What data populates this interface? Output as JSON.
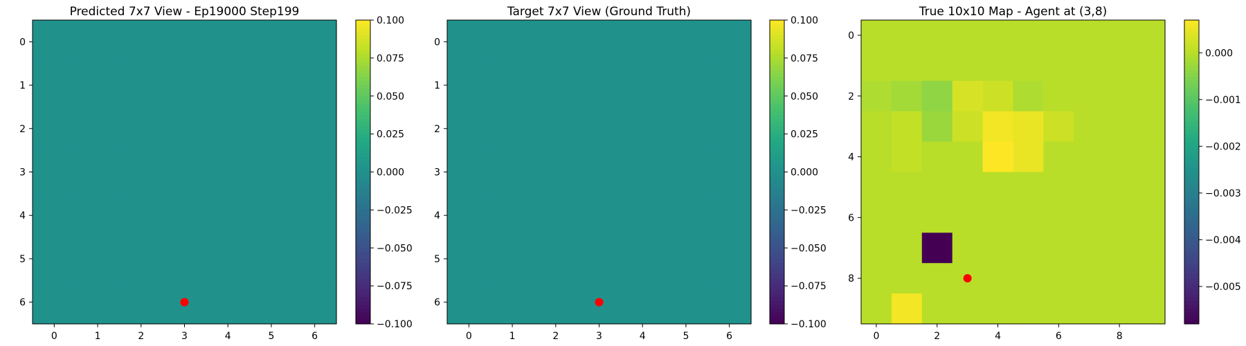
{
  "figure": {
    "panels": [
      {
        "title": "Predicted 7x7 View - Ep19000 Step199",
        "colorbar_ticks": [
          "0.100",
          "0.075",
          "0.050",
          "0.025",
          "0.000",
          "−0.025",
          "−0.050",
          "−0.075",
          "−0.100"
        ],
        "x_ticks": [
          "0",
          "1",
          "2",
          "3",
          "4",
          "5",
          "6"
        ],
        "y_ticks": [
          "0",
          "1",
          "2",
          "3",
          "4",
          "5",
          "6"
        ]
      },
      {
        "title": "Target 7x7 View (Ground Truth)",
        "colorbar_ticks": [
          "0.100",
          "0.075",
          "0.050",
          "0.025",
          "0.000",
          "−0.025",
          "−0.050",
          "−0.075",
          "−0.100"
        ],
        "x_ticks": [
          "0",
          "1",
          "2",
          "3",
          "4",
          "5",
          "6"
        ],
        "y_ticks": [
          "0",
          "1",
          "2",
          "3",
          "4",
          "5",
          "6"
        ]
      },
      {
        "title": "True 10x10 Map - Agent at (3,8)",
        "colorbar_ticks": [
          "0.000",
          "−0.001",
          "−0.002",
          "−0.003",
          "−0.004",
          "−0.005"
        ],
        "x_ticks": [
          "0",
          "2",
          "4",
          "6",
          "8"
        ],
        "y_ticks": [
          "0",
          "2",
          "4",
          "6",
          "8"
        ]
      }
    ]
  },
  "chart_data": [
    {
      "type": "heatmap",
      "title": "Predicted 7x7 View - Ep19000 Step199",
      "colormap": "viridis",
      "vmin": -0.1,
      "vmax": 0.1,
      "grid": [
        [
          0,
          0,
          0,
          0,
          0,
          0,
          0
        ],
        [
          0,
          0,
          0,
          0,
          0,
          0,
          0
        ],
        [
          0,
          0,
          0,
          0,
          0,
          0,
          0
        ],
        [
          0,
          0,
          0,
          0,
          0,
          0,
          0
        ],
        [
          0,
          0,
          0,
          0,
          0,
          0,
          0
        ],
        [
          0,
          0,
          0,
          0,
          0,
          0,
          0
        ],
        [
          0,
          0,
          0,
          0,
          0,
          0,
          0
        ]
      ],
      "marker": {
        "x": 3,
        "y": 6,
        "color": "#ff0000"
      },
      "colorbar_ticks": [
        0.1,
        0.075,
        0.05,
        0.025,
        0,
        -0.025,
        -0.05,
        -0.075,
        -0.1
      ],
      "x_ticks": [
        0,
        1,
        2,
        3,
        4,
        5,
        6
      ],
      "y_ticks": [
        0,
        1,
        2,
        3,
        4,
        5,
        6
      ],
      "grid_lines": false
    },
    {
      "type": "heatmap",
      "title": "Target 7x7 View (Ground Truth)",
      "colormap": "viridis",
      "vmin": -0.1,
      "vmax": 0.1,
      "grid": [
        [
          0,
          0,
          0,
          0,
          0,
          0,
          0
        ],
        [
          0,
          0,
          0,
          0,
          0,
          0,
          0
        ],
        [
          0,
          0,
          0,
          0,
          0,
          0,
          0
        ],
        [
          0,
          0,
          0,
          0,
          0,
          0,
          0
        ],
        [
          0,
          0,
          0,
          0,
          0,
          0,
          0
        ],
        [
          0,
          0,
          0,
          0,
          0,
          0,
          0
        ],
        [
          0,
          0,
          0,
          0,
          0,
          0,
          0
        ]
      ],
      "marker": {
        "x": 3,
        "y": 6,
        "color": "#ff0000"
      },
      "colorbar_ticks": [
        0.1,
        0.075,
        0.05,
        0.025,
        0,
        -0.025,
        -0.05,
        -0.075,
        -0.1
      ],
      "x_ticks": [
        0,
        1,
        2,
        3,
        4,
        5,
        6
      ],
      "y_ticks": [
        0,
        1,
        2,
        3,
        4,
        5,
        6
      ],
      "grid_lines": false
    },
    {
      "type": "heatmap",
      "title": "True 10x10 Map - Agent at (3,8)",
      "colormap": "viridis",
      "vmin": -0.0058,
      "vmax": 0.0007,
      "grid": [
        [
          0,
          0,
          0,
          0,
          0,
          0,
          0,
          0,
          0,
          0
        ],
        [
          0,
          0,
          0,
          0,
          0,
          0,
          0,
          0,
          0,
          0
        ],
        [
          -0.0001,
          -0.0002,
          -0.0004,
          0.0003,
          0.0002,
          -0.0001,
          0,
          0,
          0,
          0
        ],
        [
          0,
          0.0001,
          -0.0003,
          0.0002,
          0.0006,
          0.0005,
          0.0002,
          0,
          0,
          0
        ],
        [
          0,
          0.0001,
          0,
          0,
          0.0007,
          0.0005,
          0,
          0,
          0,
          0
        ],
        [
          0,
          0,
          0,
          0,
          0,
          0,
          0,
          0,
          0,
          0
        ],
        [
          0,
          0,
          0,
          0,
          0,
          0,
          0,
          0,
          0,
          0
        ],
        [
          0,
          0,
          -0.0058,
          0,
          0,
          0,
          0,
          0,
          0,
          0
        ],
        [
          0,
          0,
          0,
          0,
          0,
          0,
          0,
          0,
          0,
          0
        ],
        [
          0,
          0.0006,
          0,
          0,
          0,
          0,
          0,
          0,
          0,
          0
        ]
      ],
      "marker": {
        "x": 3,
        "y": 8,
        "color": "#ff0000"
      },
      "colorbar_ticks": [
        0,
        -0.001,
        -0.002,
        -0.003,
        -0.004,
        -0.005
      ],
      "x_ticks": [
        0,
        2,
        4,
        6,
        8
      ],
      "y_ticks": [
        0,
        2,
        4,
        6,
        8
      ],
      "grid_lines": false
    }
  ]
}
